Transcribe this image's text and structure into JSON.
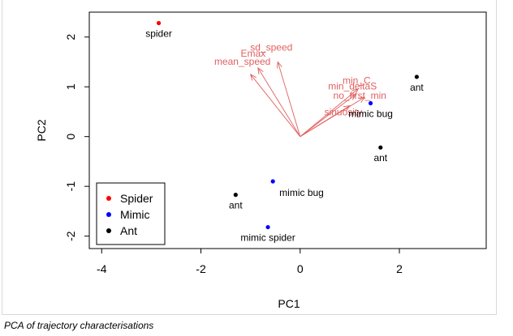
{
  "caption": "PCA of trajectory characterisations",
  "chart_data": {
    "type": "scatter",
    "title": "",
    "xlabel": "PC1",
    "ylabel": "PC2",
    "xlim": [
      -4.25,
      3.75
    ],
    "ylim": [
      -2.25,
      2.5
    ],
    "xticks": [
      -4,
      -2,
      0,
      2
    ],
    "yticks": [
      -2,
      -1,
      0,
      1,
      2
    ],
    "grid": false,
    "legend_position": "bottom-left",
    "legend": [
      {
        "label": "Spider",
        "color": "#ff0000"
      },
      {
        "label": "Mimic",
        "color": "#0000ff"
      },
      {
        "label": "Ant",
        "color": "#000000"
      }
    ],
    "points": [
      {
        "x": -2.85,
        "y": 2.28,
        "label": "spider",
        "group": "Spider",
        "color": "#ff0000",
        "label_side": "below"
      },
      {
        "x": 2.35,
        "y": 1.2,
        "label": "ant",
        "group": "Ant",
        "color": "#000000",
        "label_side": "below"
      },
      {
        "x": 1.42,
        "y": 0.67,
        "label": "mimic bug",
        "group": "Mimic",
        "color": "#0000ff",
        "label_side": "below"
      },
      {
        "x": 1.62,
        "y": -0.22,
        "label": "ant",
        "group": "Ant",
        "color": "#000000",
        "label_side": "below"
      },
      {
        "x": -0.55,
        "y": -0.9,
        "label": "mimic bug",
        "group": "Mimic",
        "color": "#0000ff",
        "label_side": "right"
      },
      {
        "x": -1.3,
        "y": -1.17,
        "label": "ant",
        "group": "Ant",
        "color": "#000000",
        "label_side": "below"
      },
      {
        "x": -0.65,
        "y": -1.82,
        "label": "mimic spider",
        "group": "Mimic",
        "color": "#0000ff",
        "label_side": "below"
      }
    ],
    "arrow_color": "#e06060",
    "arrows": [
      {
        "name": "sd_speed",
        "x": -0.45,
        "y": 1.5
      },
      {
        "name": "Emax",
        "x": -0.85,
        "y": 1.38
      },
      {
        "name": "mean_speed",
        "x": -1.0,
        "y": 1.25
      },
      {
        "name": "min_C",
        "x": 1.17,
        "y": 0.96
      },
      {
        "name": "min_deltaS",
        "x": 1.12,
        "y": 0.85
      },
      {
        "name": "no_first_min",
        "x": 1.3,
        "y": 0.79
      },
      {
        "name": "sinuosity",
        "x": 1.0,
        "y": 0.62
      }
    ]
  }
}
